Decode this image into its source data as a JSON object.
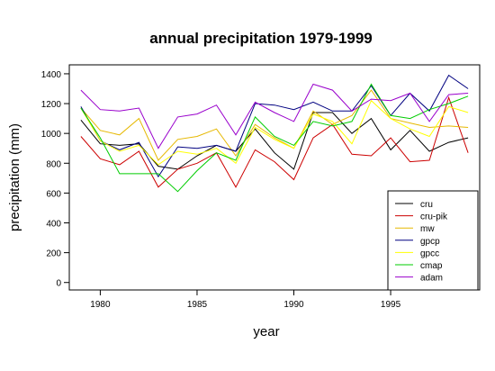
{
  "chart_data": {
    "type": "line",
    "title": "annual precipitation 1979-1999",
    "xlabel": "year",
    "ylabel": "precipitation (mm)",
    "x": [
      1979,
      1980,
      1981,
      1982,
      1983,
      1984,
      1985,
      1986,
      1987,
      1988,
      1989,
      1990,
      1991,
      1992,
      1993,
      1994,
      1995,
      1996,
      1997,
      1998,
      1999
    ],
    "xlim": [
      1978.4,
      1999.6
    ],
    "ylim": [
      -50,
      1460
    ],
    "xticks": [
      1980,
      1985,
      1990,
      1995
    ],
    "xtick_labels": [
      "1980",
      "1985",
      "1990",
      "1995"
    ],
    "yticks": [
      0,
      200,
      400,
      600,
      800,
      1000,
      1200,
      1400
    ],
    "ytick_labels": [
      "0",
      "200",
      "400",
      "600",
      "800",
      "1000",
      "1200",
      "1400"
    ],
    "legend_position": "bottom-right",
    "grid": false,
    "series": [
      {
        "name": "cru",
        "color": "#000000",
        "values": [
          1090,
          930,
          920,
          930,
          780,
          760,
          850,
          920,
          880,
          1030,
          870,
          760,
          1140,
          1140,
          1000,
          1100,
          890,
          1020,
          880,
          940,
          970
        ]
      },
      {
        "name": "cru-pik",
        "color": "#cc0000",
        "values": [
          980,
          830,
          790,
          880,
          640,
          760,
          800,
          870,
          640,
          890,
          810,
          690,
          970,
          1060,
          860,
          850,
          970,
          810,
          820,
          1240,
          870
        ]
      },
      {
        "name": "mw",
        "color": "#e6b800",
        "values": [
          1170,
          1020,
          990,
          1100,
          820,
          960,
          980,
          1030,
          850,
          1060,
          970,
          900,
          1150,
          1060,
          1120,
          1290,
          1100,
          1070,
          1040,
          1050,
          1040
        ]
      },
      {
        "name": "gpcp",
        "color": "#000080",
        "values": [
          1180,
          950,
          890,
          940,
          710,
          910,
          900,
          920,
          880,
          1200,
          1190,
          1160,
          1210,
          1150,
          1150,
          1320,
          1120,
          1270,
          1150,
          1390,
          1300
        ]
      },
      {
        "name": "gpcc",
        "color": "#ffff00",
        "values": [
          1170,
          950,
          880,
          920,
          790,
          880,
          860,
          900,
          800,
          1040,
          960,
          900,
          1130,
          1080,
          930,
          1220,
          1100,
          1030,
          980,
          1180,
          1140
        ]
      },
      {
        "name": "cmap",
        "color": "#00cc00",
        "values": [
          1170,
          970,
          730,
          730,
          730,
          610,
          750,
          870,
          820,
          1110,
          980,
          920,
          1080,
          1050,
          1080,
          1330,
          1120,
          1100,
          1160,
          1200,
          1250
        ]
      },
      {
        "name": "adam",
        "color": "#9900cc",
        "values": [
          1290,
          1160,
          1150,
          1170,
          900,
          1110,
          1130,
          1190,
          990,
          1210,
          1140,
          1080,
          1330,
          1290,
          1150,
          1230,
          1220,
          1270,
          1080,
          1260,
          1270
        ]
      }
    ]
  }
}
